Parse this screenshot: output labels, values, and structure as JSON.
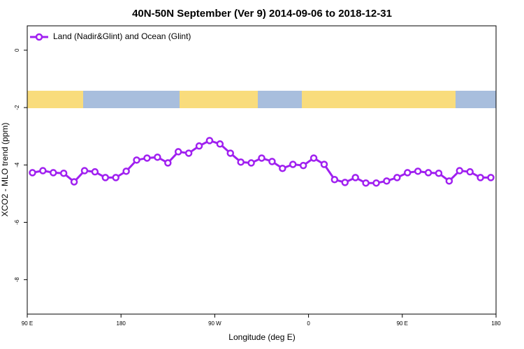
{
  "chart_data": {
    "type": "line",
    "title": "40N-50N September (Ver 9)   2014-09-06 to 2018-12-31",
    "x_label": "Longitude (deg E)",
    "y_label": "XCO2 - MLO trend (ppm)",
    "xlim": [
      90,
      540
    ],
    "ylim": [
      -9.2,
      0.85
    ],
    "xticks": [
      {
        "value": 90,
        "label": "90 E"
      },
      180,
      {
        "value": 270,
        "label": "90 W"
      },
      {
        "value": 360,
        "label": "0"
      },
      {
        "value": 450,
        "label": "90 E"
      },
      {
        "value": 540,
        "label": "180"
      }
    ],
    "yticks": [
      0,
      -2,
      -4,
      -6,
      -8
    ],
    "legend": "top-left",
    "series": [
      {
        "name": "Land (Nadir&Glint) and Ocean (Glint)",
        "color": "#a020f0",
        "x": [
          95,
          105,
          115,
          125,
          135,
          145,
          155,
          165,
          175,
          185,
          195,
          205,
          215,
          225,
          235,
          245,
          255,
          265,
          275,
          285,
          295,
          305,
          315,
          325,
          335,
          345,
          355,
          365,
          375,
          385,
          395,
          405,
          415,
          425,
          435,
          445,
          455,
          465,
          475,
          485,
          495,
          505,
          515,
          525,
          535
        ],
        "values": [
          -4.27,
          -4.2,
          -4.27,
          -4.29,
          -4.59,
          -4.2,
          -4.24,
          -4.44,
          -4.44,
          -4.22,
          -3.83,
          -3.76,
          -3.73,
          -3.93,
          -3.54,
          -3.59,
          -3.34,
          -3.15,
          -3.27,
          -3.59,
          -3.9,
          -3.93,
          -3.76,
          -3.88,
          -4.12,
          -3.98,
          -4.02,
          -3.76,
          -3.98,
          -4.51,
          -4.61,
          -4.44,
          -4.63,
          -4.63,
          -4.56,
          -4.44,
          -4.27,
          -4.22,
          -4.27,
          -4.29,
          -4.56,
          -4.2,
          -4.24,
          -4.44,
          -4.44
        ]
      }
    ]
  }
}
